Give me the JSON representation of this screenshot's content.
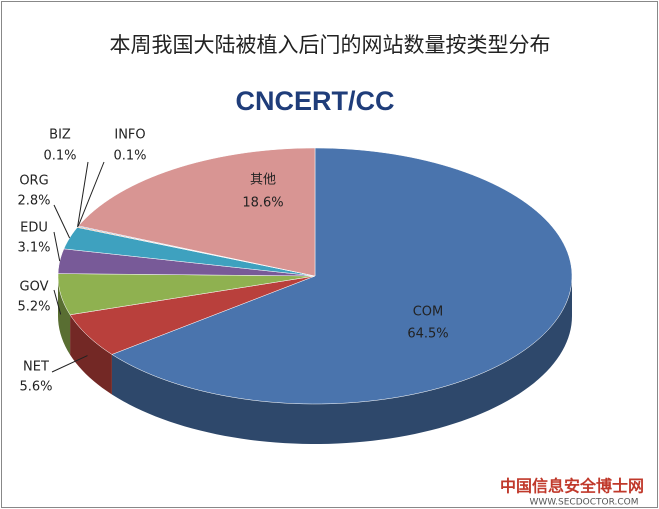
{
  "chart_data": {
    "type": "pie3d",
    "title": "本周我国大陆被植入后门的网站数量按类型分布",
    "logo": "CNCERT/CC",
    "watermark": "中国信息安全博士网",
    "watermark_url": "WWW.SECDOCTOR.COM",
    "categories": [
      "COM",
      "NET",
      "GOV",
      "EDU",
      "ORG",
      "BIZ",
      "INFO",
      "其他"
    ],
    "values": [
      64.5,
      5.6,
      5.2,
      3.1,
      2.8,
      0.1,
      0.1,
      18.6
    ],
    "value_labels": [
      "64.5%",
      "5.6%",
      "5.2%",
      "3.1%",
      "2.8%",
      "0.1%",
      "0.1%",
      "18.6%"
    ],
    "colors": [
      "#4a74ad",
      "#b9403c",
      "#8fb150",
      "#785a98",
      "#3ea1bf",
      "#e0823a",
      "#5a7fbf",
      "#d89593"
    ]
  }
}
